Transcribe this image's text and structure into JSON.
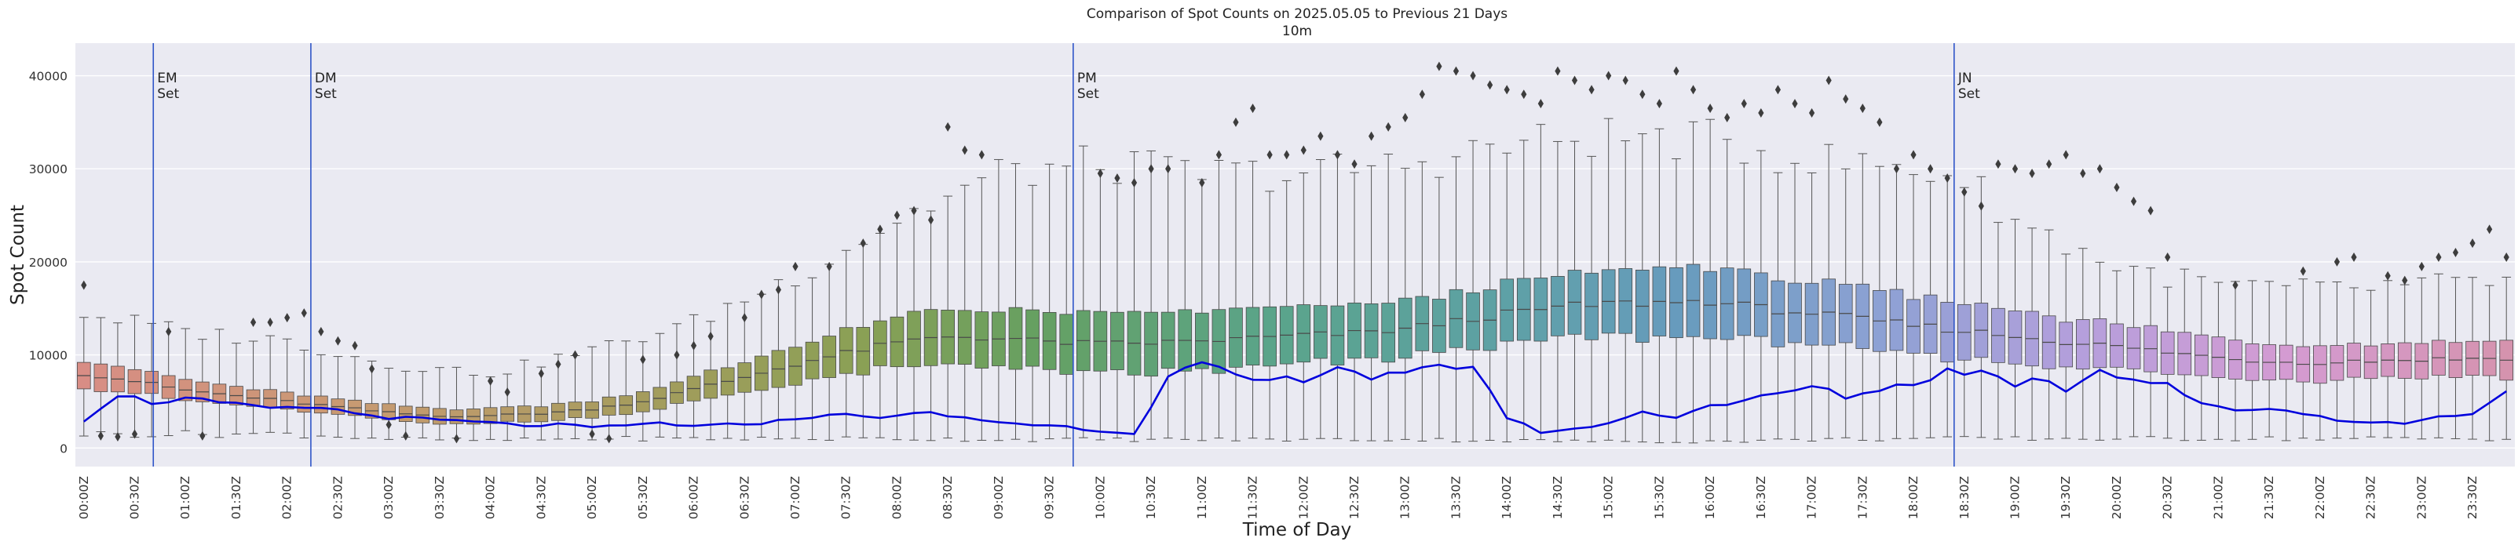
{
  "chart_data": {
    "type": "box",
    "title": "Comparison of Spot Counts on 2025.05.05 to Previous 21 Days",
    "subtitle": "10m",
    "xlabel": "Time of Day",
    "ylabel": "Spot Count",
    "ylim": [
      -2000,
      43500
    ],
    "yticks": [
      0,
      10000,
      20000,
      30000,
      40000
    ],
    "interval_minutes": 10,
    "num_bins": 144,
    "xtick_labels": [
      "00:00Z",
      "00:30Z",
      "01:00Z",
      "01:30Z",
      "02:00Z",
      "02:30Z",
      "03:00Z",
      "03:30Z",
      "04:00Z",
      "04:30Z",
      "05:00Z",
      "05:30Z",
      "06:00Z",
      "06:30Z",
      "07:00Z",
      "07:30Z",
      "08:00Z",
      "08:30Z",
      "09:00Z",
      "09:30Z",
      "10:00Z",
      "10:30Z",
      "11:00Z",
      "11:30Z",
      "12:00Z",
      "12:30Z",
      "13:00Z",
      "13:30Z",
      "14:00Z",
      "14:30Z",
      "15:00Z",
      "15:30Z",
      "16:00Z",
      "16:30Z",
      "17:00Z",
      "17:30Z",
      "18:00Z",
      "18:30Z",
      "19:00Z",
      "19:30Z",
      "20:00Z",
      "20:30Z",
      "21:00Z",
      "21:30Z",
      "22:00Z",
      "22:30Z",
      "23:00Z",
      "23:30Z"
    ],
    "median_keypoints": [
      [
        0,
        8000
      ],
      [
        3,
        7200
      ],
      [
        6,
        6200
      ],
      [
        9,
        5600
      ],
      [
        12,
        5000
      ],
      [
        15,
        4400
      ],
      [
        18,
        3800
      ],
      [
        21,
        3400
      ],
      [
        24,
        3500
      ],
      [
        27,
        3700
      ],
      [
        30,
        4200
      ],
      [
        33,
        5000
      ],
      [
        36,
        6300
      ],
      [
        39,
        7600
      ],
      [
        42,
        9000
      ],
      [
        45,
        10200
      ],
      [
        48,
        11300
      ],
      [
        51,
        12000
      ],
      [
        54,
        11800
      ],
      [
        57,
        11400
      ],
      [
        60,
        11200
      ],
      [
        63,
        11300
      ],
      [
        66,
        11500
      ],
      [
        69,
        11800
      ],
      [
        72,
        12100
      ],
      [
        75,
        12300
      ],
      [
        78,
        12800
      ],
      [
        81,
        13600
      ],
      [
        84,
        14400
      ],
      [
        87,
        15100
      ],
      [
        90,
        15500
      ],
      [
        93,
        15600
      ],
      [
        96,
        15800
      ],
      [
        99,
        15000
      ],
      [
        102,
        14500
      ],
      [
        105,
        13800
      ],
      [
        108,
        13200
      ],
      [
        111,
        12600
      ],
      [
        114,
        12000
      ],
      [
        117,
        11400
      ],
      [
        120,
        10900
      ],
      [
        123,
        10300
      ],
      [
        126,
        9700
      ],
      [
        129,
        9300
      ],
      [
        132,
        9200
      ],
      [
        135,
        9400
      ],
      [
        138,
        9500
      ],
      [
        141,
        9600
      ],
      [
        143,
        9700
      ]
    ],
    "iqr_half_keypoints": [
      [
        0,
        1500
      ],
      [
        6,
        1100
      ],
      [
        12,
        900
      ],
      [
        18,
        800
      ],
      [
        24,
        800
      ],
      [
        30,
        900
      ],
      [
        36,
        1300
      ],
      [
        42,
        2000
      ],
      [
        48,
        2700
      ],
      [
        54,
        3100
      ],
      [
        60,
        3200
      ],
      [
        66,
        3200
      ],
      [
        72,
        3100
      ],
      [
        78,
        3000
      ],
      [
        84,
        3200
      ],
      [
        90,
        3600
      ],
      [
        96,
        3700
      ],
      [
        102,
        3400
      ],
      [
        108,
        3100
      ],
      [
        114,
        2800
      ],
      [
        120,
        2400
      ],
      [
        126,
        2100
      ],
      [
        132,
        1900
      ],
      [
        138,
        1900
      ],
      [
        143,
        2000
      ]
    ],
    "whisker_high_keypoints": [
      [
        0,
        14500
      ],
      [
        6,
        12500
      ],
      [
        12,
        11500
      ],
      [
        18,
        9000
      ],
      [
        24,
        8000
      ],
      [
        30,
        10500
      ],
      [
        36,
        13500
      ],
      [
        42,
        18500
      ],
      [
        48,
        24500
      ],
      [
        54,
        29500
      ],
      [
        60,
        30500
      ],
      [
        66,
        29500
      ],
      [
        72,
        29500
      ],
      [
        78,
        30500
      ],
      [
        84,
        32500
      ],
      [
        90,
        33500
      ],
      [
        96,
        33000
      ],
      [
        102,
        31000
      ],
      [
        108,
        30000
      ],
      [
        111,
        29000
      ],
      [
        114,
        24500
      ],
      [
        120,
        19500
      ],
      [
        126,
        17500
      ],
      [
        132,
        17000
      ],
      [
        138,
        17500
      ],
      [
        143,
        18000
      ]
    ],
    "whisker_low_keypoints": [
      [
        0,
        1500
      ],
      [
        6,
        1500
      ],
      [
        12,
        1500
      ],
      [
        18,
        1000
      ],
      [
        24,
        800
      ],
      [
        30,
        1000
      ],
      [
        36,
        1000
      ],
      [
        42,
        1000
      ],
      [
        48,
        1000
      ],
      [
        54,
        900
      ],
      [
        60,
        900
      ],
      [
        66,
        900
      ],
      [
        72,
        900
      ],
      [
        78,
        900
      ],
      [
        84,
        800
      ],
      [
        90,
        700
      ],
      [
        96,
        700
      ],
      [
        102,
        900
      ],
      [
        108,
        1000
      ],
      [
        114,
        1000
      ],
      [
        120,
        1000
      ],
      [
        126,
        1000
      ],
      [
        132,
        1000
      ],
      [
        138,
        1000
      ],
      [
        143,
        1000
      ]
    ],
    "outliers": [
      [
        0,
        17500
      ],
      [
        1,
        1300
      ],
      [
        2,
        1200
      ],
      [
        3,
        1500
      ],
      [
        5,
        12500
      ],
      [
        7,
        1300
      ],
      [
        10,
        13500
      ],
      [
        11,
        13500
      ],
      [
        12,
        14000
      ],
      [
        13,
        14500
      ],
      [
        14,
        12500
      ],
      [
        15,
        11500
      ],
      [
        16,
        11000
      ],
      [
        17,
        8500
      ],
      [
        18,
        2500
      ],
      [
        19,
        1300
      ],
      [
        22,
        1000
      ],
      [
        24,
        7200
      ],
      [
        25,
        6000
      ],
      [
        27,
        8000
      ],
      [
        28,
        9000
      ],
      [
        29,
        10000
      ],
      [
        30,
        1500
      ],
      [
        31,
        1000
      ],
      [
        33,
        9500
      ],
      [
        35,
        10000
      ],
      [
        36,
        11000
      ],
      [
        37,
        12000
      ],
      [
        39,
        14000
      ],
      [
        40,
        16500
      ],
      [
        41,
        17000
      ],
      [
        42,
        19500
      ],
      [
        44,
        19500
      ],
      [
        46,
        22000
      ],
      [
        47,
        23500
      ],
      [
        48,
        25000
      ],
      [
        49,
        25500
      ],
      [
        50,
        24500
      ],
      [
        51,
        34500
      ],
      [
        52,
        32000
      ],
      [
        53,
        31500
      ],
      [
        60,
        29500
      ],
      [
        61,
        29000
      ],
      [
        62,
        28500
      ],
      [
        63,
        30000
      ],
      [
        64,
        30000
      ],
      [
        66,
        28500
      ],
      [
        67,
        31500
      ],
      [
        68,
        35000
      ],
      [
        69,
        36500
      ],
      [
        70,
        31500
      ],
      [
        71,
        31500
      ],
      [
        72,
        32000
      ],
      [
        73,
        33500
      ],
      [
        74,
        31500
      ],
      [
        75,
        30500
      ],
      [
        76,
        33500
      ],
      [
        77,
        34500
      ],
      [
        78,
        35500
      ],
      [
        79,
        38000
      ],
      [
        80,
        41000
      ],
      [
        81,
        40500
      ],
      [
        82,
        40000
      ],
      [
        83,
        39000
      ],
      [
        84,
        38500
      ],
      [
        85,
        38000
      ],
      [
        86,
        37000
      ],
      [
        87,
        40500
      ],
      [
        88,
        39500
      ],
      [
        89,
        38500
      ],
      [
        90,
        40000
      ],
      [
        91,
        39500
      ],
      [
        92,
        38000
      ],
      [
        93,
        37000
      ],
      [
        94,
        40500
      ],
      [
        95,
        38500
      ],
      [
        96,
        36500
      ],
      [
        97,
        35500
      ],
      [
        98,
        37000
      ],
      [
        99,
        36000
      ],
      [
        100,
        38500
      ],
      [
        101,
        37000
      ],
      [
        102,
        36000
      ],
      [
        103,
        39500
      ],
      [
        104,
        37500
      ],
      [
        105,
        36500
      ],
      [
        106,
        35000
      ],
      [
        107,
        30000
      ],
      [
        108,
        31500
      ],
      [
        109,
        30000
      ],
      [
        110,
        29000
      ],
      [
        111,
        27500
      ],
      [
        112,
        26000
      ],
      [
        113,
        30500
      ],
      [
        114,
        30000
      ],
      [
        115,
        29500
      ],
      [
        116,
        30500
      ],
      [
        117,
        31500
      ],
      [
        118,
        29500
      ],
      [
        119,
        30000
      ],
      [
        120,
        28000
      ],
      [
        121,
        26500
      ],
      [
        122,
        25500
      ],
      [
        123,
        20500
      ],
      [
        127,
        17500
      ],
      [
        131,
        19000
      ],
      [
        133,
        20000
      ],
      [
        134,
        20500
      ],
      [
        136,
        18500
      ],
      [
        137,
        18000
      ],
      [
        138,
        19500
      ],
      [
        139,
        20500
      ],
      [
        140,
        21000
      ],
      [
        141,
        22000
      ],
      [
        142,
        23500
      ],
      [
        143,
        20500
      ]
    ],
    "actual_series": {
      "name": "2025.05.05",
      "color": "#0000dd",
      "keypoints": [
        [
          0,
          3000
        ],
        [
          2,
          5800
        ],
        [
          4,
          4900
        ],
        [
          6,
          5300
        ],
        [
          8,
          4800
        ],
        [
          10,
          4400
        ],
        [
          12,
          4200
        ],
        [
          14,
          4400
        ],
        [
          16,
          3700
        ],
        [
          18,
          3300
        ],
        [
          20,
          3100
        ],
        [
          22,
          2900
        ],
        [
          24,
          2700
        ],
        [
          26,
          2400
        ],
        [
          28,
          2500
        ],
        [
          30,
          2200
        ],
        [
          32,
          2400
        ],
        [
          34,
          2700
        ],
        [
          36,
          2300
        ],
        [
          38,
          2500
        ],
        [
          40,
          2700
        ],
        [
          42,
          3100
        ],
        [
          44,
          3700
        ],
        [
          46,
          3300
        ],
        [
          48,
          3500
        ],
        [
          50,
          3700
        ],
        [
          52,
          3200
        ],
        [
          54,
          2800
        ],
        [
          56,
          2500
        ],
        [
          58,
          2300
        ],
        [
          60,
          1800
        ],
        [
          62,
          1600
        ],
        [
          64,
          7500
        ],
        [
          66,
          9000
        ],
        [
          68,
          7500
        ],
        [
          70,
          7200
        ],
        [
          72,
          7500
        ],
        [
          74,
          8800
        ],
        [
          76,
          7600
        ],
        [
          78,
          7800
        ],
        [
          80,
          8600
        ],
        [
          82,
          9000
        ],
        [
          84,
          3300
        ],
        [
          86,
          1700
        ],
        [
          88,
          2000
        ],
        [
          90,
          2700
        ],
        [
          92,
          3800
        ],
        [
          94,
          3400
        ],
        [
          96,
          4600
        ],
        [
          98,
          5000
        ],
        [
          100,
          5800
        ],
        [
          102,
          6600
        ],
        [
          104,
          5500
        ],
        [
          106,
          6300
        ],
        [
          108,
          7000
        ],
        [
          110,
          8300
        ],
        [
          112,
          8200
        ],
        [
          114,
          6900
        ],
        [
          116,
          7500
        ],
        [
          117,
          6200
        ],
        [
          119,
          8600
        ],
        [
          121,
          7300
        ],
        [
          123,
          7000
        ],
        [
          125,
          4600
        ],
        [
          127,
          4100
        ],
        [
          129,
          4300
        ],
        [
          131,
          3700
        ],
        [
          133,
          3100
        ],
        [
          135,
          2700
        ],
        [
          137,
          2700
        ],
        [
          139,
          3300
        ],
        [
          141,
          3800
        ],
        [
          143,
          6000
        ]
      ]
    },
    "vertical_markers": [
      {
        "label_line1": "EM",
        "label_line2": "Set",
        "bin": 4.1
      },
      {
        "label_line1": "DM",
        "label_line2": "Set",
        "bin": 13.4
      },
      {
        "label_line1": "PM",
        "label_line2": "Set",
        "bin": 58.4
      },
      {
        "label_line1": "JN",
        "label_line2": "Set",
        "bin": 110.4
      }
    ],
    "palette_stops": [
      [
        0,
        "#d88d85"
      ],
      [
        16,
        "#c89a72"
      ],
      [
        32,
        "#a79c5e"
      ],
      [
        46,
        "#8aa055"
      ],
      [
        56,
        "#66a061"
      ],
      [
        70,
        "#5aa48a"
      ],
      [
        84,
        "#5ea1a6"
      ],
      [
        94,
        "#679bbd"
      ],
      [
        106,
        "#8da1d4"
      ],
      [
        118,
        "#b59fdc"
      ],
      [
        130,
        "#d49bd2"
      ],
      [
        143,
        "#d593ae"
      ]
    ]
  }
}
